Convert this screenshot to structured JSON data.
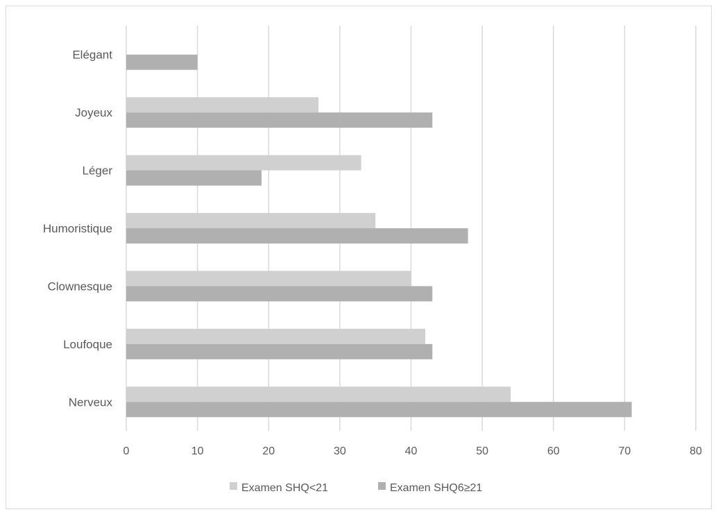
{
  "chart_data": {
    "type": "bar",
    "orientation": "horizontal",
    "categories": [
      "Elégant",
      "Joyeux",
      "Léger",
      "Humoristique",
      "Clownesque",
      "Loufoque",
      "Nerveux"
    ],
    "series": [
      {
        "name": "Examen SHQ<21",
        "color": "#d0d0d0",
        "values": [
          null,
          27,
          33,
          35,
          40,
          42,
          54
        ]
      },
      {
        "name": "Examen SHQ6≥21",
        "color": "#b0b0b0",
        "values": [
          10,
          43,
          19,
          48,
          43,
          43,
          71
        ]
      }
    ],
    "xlim": [
      0,
      80
    ],
    "xticks": [
      "0",
      "10",
      "20",
      "30",
      "40",
      "50",
      "60",
      "70",
      "80"
    ],
    "grid": true,
    "legend_position": "bottom"
  }
}
